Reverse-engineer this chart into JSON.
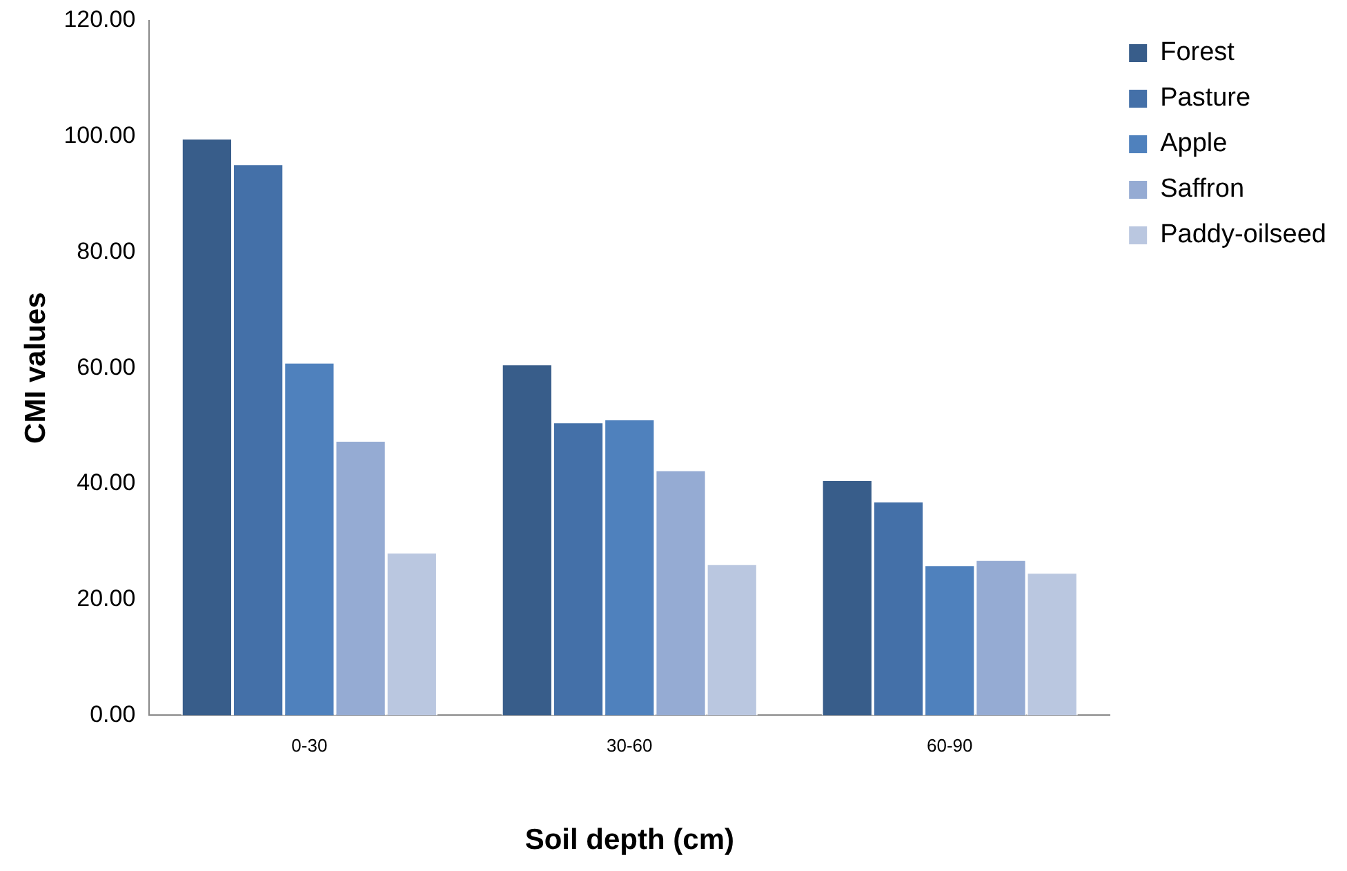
{
  "chart_data": {
    "type": "bar",
    "xlabel": "Soil depth (cm)",
    "ylabel": "CMI values",
    "categories": [
      "0-30",
      "30-60",
      "60-90"
    ],
    "series": [
      {
        "name": "Forest",
        "color": "#385d8a",
        "values": [
          99.7,
          60.7,
          40.7
        ]
      },
      {
        "name": "Pasture",
        "color": "#4470a8",
        "values": [
          95.3,
          50.7,
          37.0
        ]
      },
      {
        "name": "Apple",
        "color": "#4f81bd",
        "values": [
          61.0,
          51.2,
          26.0
        ]
      },
      {
        "name": "Saffron",
        "color": "#95abd3",
        "values": [
          47.5,
          42.4,
          26.9
        ]
      },
      {
        "name": "Paddy-oilseed",
        "color": "#bac7e0",
        "values": [
          28.2,
          26.2,
          24.7
        ]
      }
    ],
    "ylim": [
      0,
      120
    ],
    "yticks": [
      {
        "value": 0,
        "label": "0.00"
      },
      {
        "value": 20,
        "label": "20.00"
      },
      {
        "value": 40,
        "label": "40.00"
      },
      {
        "value": 60,
        "label": "60.00"
      },
      {
        "value": 80,
        "label": "80.00"
      },
      {
        "value": 100,
        "label": "100.00"
      },
      {
        "value": 120,
        "label": "120.00"
      }
    ],
    "grid": false,
    "legend": "top right"
  }
}
